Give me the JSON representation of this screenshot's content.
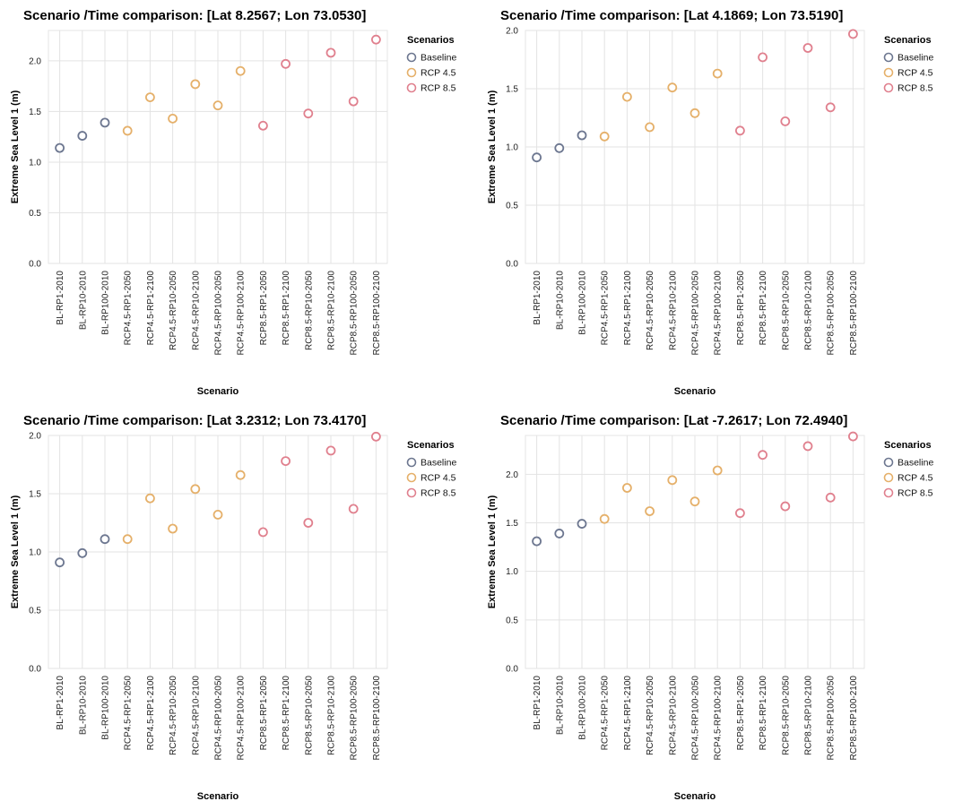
{
  "legend": {
    "title": "Scenarios",
    "items": [
      "Baseline",
      "RCP 4.5",
      "RCP 8.5"
    ]
  },
  "colors": {
    "Baseline": "#6d7790",
    "RCP 4.5": "#e5b06a",
    "RCP 8.5": "#e0808e"
  },
  "chart_data": [
    {
      "type": "scatter",
      "title": "Scenario /Time comparison: [Lat 8.2567; Lon 73.0530]",
      "xlabel": "Scenario",
      "ylabel": "Extreme Sea Level 1 (m)",
      "ylim": [
        0,
        2.3
      ],
      "yticks": [
        0.0,
        0.5,
        1.0,
        1.5,
        2.0
      ],
      "ytick_labels": [
        "0.0",
        "0.5",
        "1.0",
        "1.5",
        "2.0"
      ],
      "grid": true,
      "legend_position": "right",
      "categories": [
        "BL-RP1-2010",
        "BL-RP10-2010",
        "BL-RP100-2010",
        "RCP4.5-RP1-2050",
        "RCP4.5-RP1-2100",
        "RCP4.5-RP10-2050",
        "RCP4.5-RP10-2100",
        "RCP4.5-RP100-2050",
        "RCP4.5-RP100-2100",
        "RCP8.5-RP1-2050",
        "RCP8.5-RP1-2100",
        "RCP8.5-RP10-2050",
        "RCP8.5-RP10-2100",
        "RCP8.5-RP100-2050",
        "RCP8.5-RP100-2100"
      ],
      "values": [
        1.14,
        1.26,
        1.39,
        1.31,
        1.64,
        1.43,
        1.77,
        1.56,
        1.9,
        1.36,
        1.97,
        1.48,
        2.08,
        1.6,
        2.21
      ],
      "groups": [
        "Baseline",
        "Baseline",
        "Baseline",
        "RCP 4.5",
        "RCP 4.5",
        "RCP 4.5",
        "RCP 4.5",
        "RCP 4.5",
        "RCP 4.5",
        "RCP 8.5",
        "RCP 8.5",
        "RCP 8.5",
        "RCP 8.5",
        "RCP 8.5",
        "RCP 8.5"
      ]
    },
    {
      "type": "scatter",
      "title": "Scenario /Time comparison: [Lat 4.1869; Lon 73.5190]",
      "xlabel": "Scenario",
      "ylabel": "Extreme Sea Level 1 (m)",
      "ylim": [
        0,
        2.0
      ],
      "yticks": [
        0.0,
        0.5,
        1.0,
        1.5,
        2.0
      ],
      "ytick_labels": [
        "0.0",
        "0.5",
        "1.0",
        "1.5",
        "2.0"
      ],
      "grid": true,
      "legend_position": "right",
      "categories": [
        "BL-RP1-2010",
        "BL-RP10-2010",
        "BL-RP100-2010",
        "RCP4.5-RP1-2050",
        "RCP4.5-RP1-2100",
        "RCP4.5-RP10-2050",
        "RCP4.5-RP10-2100",
        "RCP4.5-RP100-2050",
        "RCP4.5-RP100-2100",
        "RCP8.5-RP1-2050",
        "RCP8.5-RP1-2100",
        "RCP8.5-RP10-2050",
        "RCP8.5-RP10-2100",
        "RCP8.5-RP100-2050",
        "RCP8.5-RP100-2100"
      ],
      "values": [
        0.91,
        0.99,
        1.1,
        1.09,
        1.43,
        1.17,
        1.51,
        1.29,
        1.63,
        1.14,
        1.77,
        1.22,
        1.85,
        1.34,
        1.97
      ],
      "groups": [
        "Baseline",
        "Baseline",
        "Baseline",
        "RCP 4.5",
        "RCP 4.5",
        "RCP 4.5",
        "RCP 4.5",
        "RCP 4.5",
        "RCP 4.5",
        "RCP 8.5",
        "RCP 8.5",
        "RCP 8.5",
        "RCP 8.5",
        "RCP 8.5",
        "RCP 8.5"
      ]
    },
    {
      "type": "scatter",
      "title": "Scenario /Time comparison: [Lat 3.2312; Lon 73.4170]",
      "xlabel": "Scenario",
      "ylabel": "Extreme Sea Level 1 (m)",
      "ylim": [
        0,
        2.0
      ],
      "yticks": [
        0.0,
        0.5,
        1.0,
        1.5,
        2.0
      ],
      "ytick_labels": [
        "0.0",
        "0.5",
        "1.0",
        "1.5",
        "2.0"
      ],
      "grid": true,
      "legend_position": "right",
      "categories": [
        "BL-RP1-2010",
        "BL-RP10-2010",
        "BL-RP100-2010",
        "RCP4.5-RP1-2050",
        "RCP4.5-RP1-2100",
        "RCP4.5-RP10-2050",
        "RCP4.5-RP10-2100",
        "RCP4.5-RP100-2050",
        "RCP4.5-RP100-2100",
        "RCP8.5-RP1-2050",
        "RCP8.5-RP1-2100",
        "RCP8.5-RP10-2050",
        "RCP8.5-RP10-2100",
        "RCP8.5-RP100-2050",
        "RCP8.5-RP100-2100"
      ],
      "values": [
        0.91,
        0.99,
        1.11,
        1.11,
        1.46,
        1.2,
        1.54,
        1.32,
        1.66,
        1.17,
        1.78,
        1.25,
        1.87,
        1.37,
        1.99
      ],
      "groups": [
        "Baseline",
        "Baseline",
        "Baseline",
        "RCP 4.5",
        "RCP 4.5",
        "RCP 4.5",
        "RCP 4.5",
        "RCP 4.5",
        "RCP 4.5",
        "RCP 8.5",
        "RCP 8.5",
        "RCP 8.5",
        "RCP 8.5",
        "RCP 8.5",
        "RCP 8.5"
      ]
    },
    {
      "type": "scatter",
      "title": "Scenario /Time comparison: [Lat -7.2617; Lon 72.4940]",
      "xlabel": "Scenario",
      "ylabel": "Extreme Sea Level 1 (m)",
      "ylim": [
        0,
        2.4
      ],
      "yticks": [
        0.0,
        0.5,
        1.0,
        1.5,
        2.0
      ],
      "ytick_labels": [
        "0.0",
        "0.5",
        "1.0",
        "1.5",
        "2.0"
      ],
      "grid": true,
      "legend_position": "right",
      "categories": [
        "BL-RP1-2010",
        "BL-RP10-2010",
        "BL-RP100-2010",
        "RCP4.5-RP1-2050",
        "RCP4.5-RP1-2100",
        "RCP4.5-RP10-2050",
        "RCP4.5-RP10-2100",
        "RCP4.5-RP100-2050",
        "RCP4.5-RP100-2100",
        "RCP8.5-RP1-2050",
        "RCP8.5-RP1-2100",
        "RCP8.5-RP10-2050",
        "RCP8.5-RP10-2100",
        "RCP8.5-RP100-2050",
        "RCP8.5-RP100-2100"
      ],
      "values": [
        1.31,
        1.39,
        1.49,
        1.54,
        1.86,
        1.62,
        1.94,
        1.72,
        2.04,
        1.6,
        2.2,
        1.67,
        2.29,
        1.76,
        2.39
      ],
      "groups": [
        "Baseline",
        "Baseline",
        "Baseline",
        "RCP 4.5",
        "RCP 4.5",
        "RCP 4.5",
        "RCP 4.5",
        "RCP 4.5",
        "RCP 4.5",
        "RCP 8.5",
        "RCP 8.5",
        "RCP 8.5",
        "RCP 8.5",
        "RCP 8.5",
        "RCP 8.5"
      ]
    }
  ]
}
